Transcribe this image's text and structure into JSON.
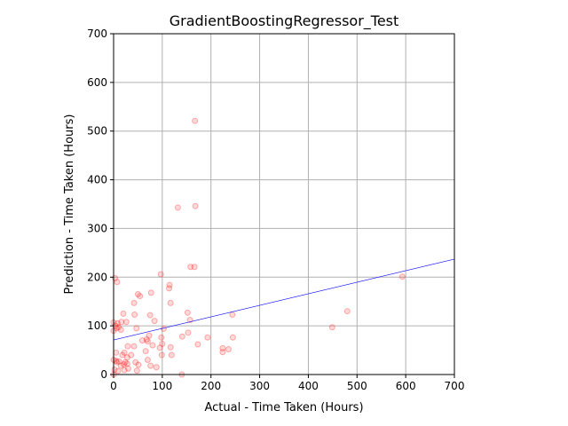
{
  "chart_data": {
    "type": "scatter",
    "title": "GradientBoostingRegressor_Test",
    "xlabel": "Actual - Time Taken (Hours)",
    "ylabel": "Prediction - Time Taken (Hours)",
    "xlim": [
      0,
      700
    ],
    "ylim": [
      0,
      700
    ],
    "xticks": [
      0,
      100,
      200,
      300,
      400,
      500,
      600,
      700
    ],
    "yticks": [
      0,
      100,
      200,
      300,
      400,
      500,
      600,
      700
    ],
    "grid": true,
    "point_color": "#ff0000",
    "point_opacity": 0.15,
    "line_color": "#0000ff",
    "points": [
      [
        167,
        521
      ],
      [
        132,
        343
      ],
      [
        168,
        346
      ],
      [
        158,
        221
      ],
      [
        166,
        221
      ],
      [
        97,
        206
      ],
      [
        3,
        198
      ],
      [
        7,
        190
      ],
      [
        115,
        184
      ],
      [
        114,
        177
      ],
      [
        50,
        165
      ],
      [
        54,
        161
      ],
      [
        77,
        168
      ],
      [
        593,
        201
      ],
      [
        117,
        147
      ],
      [
        42,
        147
      ],
      [
        480,
        130
      ],
      [
        152,
        127
      ],
      [
        244,
        123
      ],
      [
        43,
        123
      ],
      [
        20,
        125
      ],
      [
        75,
        122
      ],
      [
        157,
        112
      ],
      [
        84,
        110
      ],
      [
        16,
        108
      ],
      [
        26,
        108
      ],
      [
        0,
        107
      ],
      [
        8,
        105
      ],
      [
        4,
        100
      ],
      [
        10,
        97
      ],
      [
        6,
        95
      ],
      [
        15,
        92
      ],
      [
        0,
        90
      ],
      [
        47,
        95
      ],
      [
        103,
        94
      ],
      [
        449,
        97
      ],
      [
        153,
        86
      ],
      [
        73,
        80
      ],
      [
        98,
        76
      ],
      [
        245,
        76
      ],
      [
        141,
        78
      ],
      [
        193,
        76
      ],
      [
        68,
        72
      ],
      [
        70,
        68
      ],
      [
        59,
        70
      ],
      [
        80,
        60
      ],
      [
        173,
        62
      ],
      [
        29,
        58
      ],
      [
        42,
        58
      ],
      [
        117,
        56
      ],
      [
        224,
        54
      ],
      [
        236,
        52
      ],
      [
        224,
        46
      ],
      [
        66,
        48
      ],
      [
        5,
        45
      ],
      [
        22,
        45
      ],
      [
        18,
        40
      ],
      [
        119,
        40
      ],
      [
        28,
        35
      ],
      [
        99,
        40
      ],
      [
        0,
        30
      ],
      [
        5,
        28
      ],
      [
        7,
        25
      ],
      [
        11,
        27
      ],
      [
        24,
        25
      ],
      [
        21,
        21
      ],
      [
        28,
        22
      ],
      [
        45,
        25
      ],
      [
        51,
        20
      ],
      [
        76,
        18
      ],
      [
        88,
        15
      ],
      [
        2,
        10
      ],
      [
        9,
        7
      ],
      [
        22,
        9
      ],
      [
        48,
        8
      ],
      [
        140,
        0
      ],
      [
        0,
        0
      ],
      [
        100,
        63
      ],
      [
        70,
        30
      ],
      [
        36,
        40
      ],
      [
        15,
        18
      ],
      [
        30,
        12
      ],
      [
        95,
        55
      ]
    ],
    "fit_line": {
      "x": [
        0,
        700
      ],
      "y": [
        71,
        237
      ]
    }
  }
}
